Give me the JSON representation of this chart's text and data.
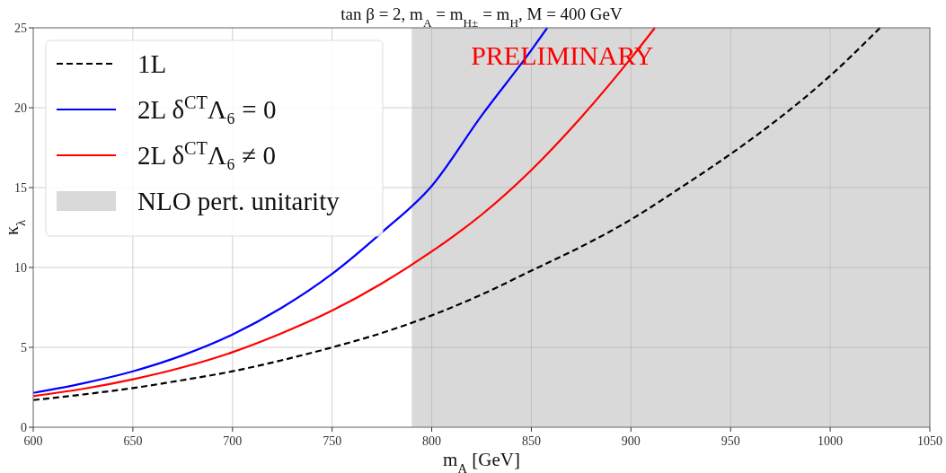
{
  "chart_data": {
    "type": "line",
    "title": "tan β = 2, m$_{A}$ = m$_{H±}$ = m$_{H}$, M = 400 GeV",
    "xlabel": "m$_{A}$ [GeV]",
    "ylabel": "κ$_{λ}$",
    "xlim": [
      600,
      1050
    ],
    "xticks": [
      600,
      650,
      700,
      750,
      800,
      850,
      900,
      950,
      1000,
      1050
    ],
    "ylim": [
      0,
      25
    ],
    "yticks": [
      0,
      5,
      10,
      15,
      20,
      25
    ],
    "grid": true,
    "legend": "top left",
    "bands": [
      {
        "axis": "x",
        "from": 790,
        "to": 1050,
        "label": "NLO pert. unitarity",
        "color": "#d9d9d9"
      }
    ],
    "annotations": [
      "PRELIMINARY"
    ],
    "series": [
      {
        "name": "1L",
        "color": "#000000",
        "line_style": "dashed",
        "x": [
          600,
          625,
          650,
          675,
          700,
          725,
          750,
          775,
          800,
          825,
          850,
          875,
          900,
          925,
          950,
          975,
          1000,
          1025
        ],
        "values": [
          1.7,
          2.05,
          2.45,
          2.95,
          3.5,
          4.2,
          5.0,
          5.9,
          7.0,
          8.3,
          9.8,
          11.3,
          13.0,
          15.0,
          17.1,
          19.4,
          22.0,
          25.0
        ]
      },
      {
        "name": "2L δ$^{CT}$Λ₆ = 0",
        "color": "#0000ff",
        "line_style": "solid",
        "x": [
          600,
          625,
          650,
          675,
          700,
          725,
          750,
          775,
          800,
          825,
          850,
          858
        ],
        "values": [
          2.15,
          2.75,
          3.5,
          4.5,
          5.8,
          7.5,
          9.6,
          12.2,
          15.1,
          19.5,
          23.6,
          25.0
        ]
      },
      {
        "name": "2L δ$^{CT}$Λ₆ ≠ 0",
        "color": "#ff0000",
        "line_style": "solid",
        "x": [
          600,
          625,
          650,
          675,
          700,
          725,
          750,
          775,
          800,
          825,
          850,
          875,
          900,
          912
        ],
        "values": [
          1.95,
          2.4,
          3.0,
          3.75,
          4.7,
          5.9,
          7.3,
          9.0,
          11.0,
          13.3,
          16.1,
          19.4,
          23.1,
          25.0
        ]
      }
    ]
  }
}
